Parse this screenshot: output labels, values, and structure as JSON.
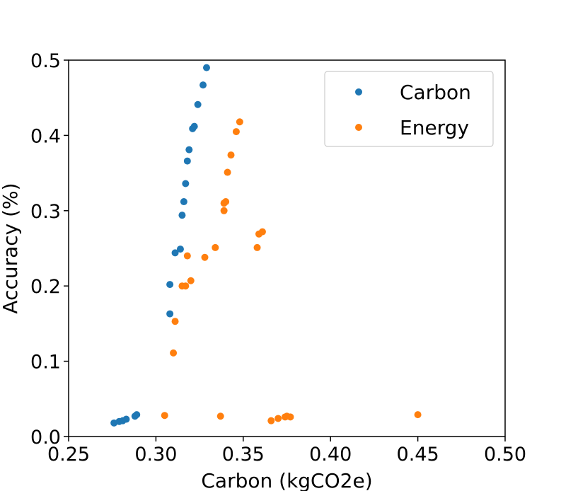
{
  "chart_data": {
    "type": "scatter",
    "title": "",
    "xlabel": "Carbon (kgCO2e)",
    "ylabel": "Accuracy (%)",
    "xlim": [
      0.25,
      0.5
    ],
    "ylim": [
      0.0,
      0.5
    ],
    "xticks": [
      "0.25",
      "0.30",
      "0.35",
      "0.40",
      "0.45",
      "0.50"
    ],
    "yticks": [
      "0.0",
      "0.1",
      "0.2",
      "0.3",
      "0.4",
      "0.5"
    ],
    "grid": false,
    "legend_position": "top-right",
    "series": [
      {
        "name": "Carbon",
        "color": "#1f77b4",
        "points": [
          [
            0.276,
            0.018
          ],
          [
            0.279,
            0.02
          ],
          [
            0.281,
            0.021
          ],
          [
            0.283,
            0.023
          ],
          [
            0.288,
            0.027
          ],
          [
            0.289,
            0.029
          ],
          [
            0.308,
            0.163
          ],
          [
            0.308,
            0.202
          ],
          [
            0.311,
            0.244
          ],
          [
            0.314,
            0.249
          ],
          [
            0.315,
            0.294
          ],
          [
            0.316,
            0.312
          ],
          [
            0.317,
            0.336
          ],
          [
            0.318,
            0.366
          ],
          [
            0.319,
            0.381
          ],
          [
            0.321,
            0.409
          ],
          [
            0.322,
            0.412
          ],
          [
            0.324,
            0.441
          ],
          [
            0.327,
            0.467
          ],
          [
            0.329,
            0.49
          ]
        ]
      },
      {
        "name": "Energy",
        "color": "#ff7f0e",
        "points": [
          [
            0.305,
            0.028
          ],
          [
            0.31,
            0.111
          ],
          [
            0.311,
            0.153
          ],
          [
            0.315,
            0.2
          ],
          [
            0.317,
            0.2
          ],
          [
            0.318,
            0.24
          ],
          [
            0.32,
            0.207
          ],
          [
            0.328,
            0.238
          ],
          [
            0.334,
            0.251
          ],
          [
            0.337,
            0.027
          ],
          [
            0.339,
            0.3
          ],
          [
            0.339,
            0.31
          ],
          [
            0.34,
            0.312
          ],
          [
            0.341,
            0.351
          ],
          [
            0.343,
            0.374
          ],
          [
            0.346,
            0.405
          ],
          [
            0.348,
            0.418
          ],
          [
            0.358,
            0.251
          ],
          [
            0.359,
            0.269
          ],
          [
            0.361,
            0.272
          ],
          [
            0.366,
            0.021
          ],
          [
            0.37,
            0.024
          ],
          [
            0.374,
            0.026
          ],
          [
            0.375,
            0.027
          ],
          [
            0.377,
            0.026
          ],
          [
            0.45,
            0.029
          ]
        ]
      }
    ]
  }
}
